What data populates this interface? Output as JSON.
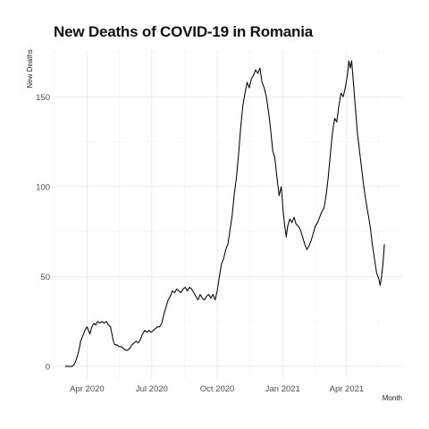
{
  "chart_data": {
    "type": "line",
    "title": "New Deaths of COVID-19 in Romania",
    "xlabel": "Month",
    "ylabel": "New Deaths",
    "grid": true,
    "legend": "none",
    "x_range": [
      "2020-02-14",
      "2021-06-18"
    ],
    "ylim": [
      -7,
      176
    ],
    "y_ticks": [
      0,
      50,
      100,
      150
    ],
    "y_minor_ticks": [
      25,
      75,
      125,
      175
    ],
    "x_ticks": [
      {
        "date": "2020-04-01",
        "label": "Apr 2020"
      },
      {
        "date": "2020-07-01",
        "label": "Jul 2020"
      },
      {
        "date": "2020-10-01",
        "label": "Oct 2020"
      },
      {
        "date": "2021-01-01",
        "label": "Jan 2021"
      },
      {
        "date": "2021-04-01",
        "label": "Apr 2021"
      }
    ],
    "x_minor_ticks": [
      "2020-02-15",
      "2020-05-16",
      "2020-08-16",
      "2020-11-16",
      "2021-02-15",
      "2021-05-16"
    ],
    "series": [
      {
        "color": "#000000",
        "points": [
          [
            "2020-03-01",
            0
          ],
          [
            "2020-03-11",
            0
          ],
          [
            "2020-03-14",
            1
          ],
          [
            "2020-03-17",
            4
          ],
          [
            "2020-03-20",
            8
          ],
          [
            "2020-03-23",
            14
          ],
          [
            "2020-03-26",
            17
          ],
          [
            "2020-03-29",
            20
          ],
          [
            "2020-04-01",
            22
          ],
          [
            "2020-04-03",
            20
          ],
          [
            "2020-04-05",
            18
          ],
          [
            "2020-04-07",
            21
          ],
          [
            "2020-04-09",
            23
          ],
          [
            "2020-04-11",
            24
          ],
          [
            "2020-04-13",
            23
          ],
          [
            "2020-04-16",
            25
          ],
          [
            "2020-04-19",
            24
          ],
          [
            "2020-04-22",
            25
          ],
          [
            "2020-04-25",
            24
          ],
          [
            "2020-04-28",
            25
          ],
          [
            "2020-05-01",
            23
          ],
          [
            "2020-05-04",
            22
          ],
          [
            "2020-05-06",
            18
          ],
          [
            "2020-05-08",
            14
          ],
          [
            "2020-05-10",
            12
          ],
          [
            "2020-05-13",
            12
          ],
          [
            "2020-05-16",
            11
          ],
          [
            "2020-05-19",
            11
          ],
          [
            "2020-05-22",
            10
          ],
          [
            "2020-05-25",
            9
          ],
          [
            "2020-05-28",
            9
          ],
          [
            "2020-05-31",
            10
          ],
          [
            "2020-06-03",
            12
          ],
          [
            "2020-06-06",
            13
          ],
          [
            "2020-06-09",
            14
          ],
          [
            "2020-06-12",
            13
          ],
          [
            "2020-06-15",
            15
          ],
          [
            "2020-06-18",
            18
          ],
          [
            "2020-06-21",
            20
          ],
          [
            "2020-06-24",
            19
          ],
          [
            "2020-06-27",
            20
          ],
          [
            "2020-06-30",
            19
          ],
          [
            "2020-07-03",
            20
          ],
          [
            "2020-07-06",
            21
          ],
          [
            "2020-07-09",
            22
          ],
          [
            "2020-07-12",
            22
          ],
          [
            "2020-07-15",
            24
          ],
          [
            "2020-07-18",
            29
          ],
          [
            "2020-07-21",
            33
          ],
          [
            "2020-07-24",
            37
          ],
          [
            "2020-07-27",
            39
          ],
          [
            "2020-07-30",
            42
          ],
          [
            "2020-08-02",
            41
          ],
          [
            "2020-08-05",
            43
          ],
          [
            "2020-08-08",
            42
          ],
          [
            "2020-08-11",
            41
          ],
          [
            "2020-08-14",
            43
          ],
          [
            "2020-08-17",
            44
          ],
          [
            "2020-08-20",
            42
          ],
          [
            "2020-08-23",
            44
          ],
          [
            "2020-08-26",
            43
          ],
          [
            "2020-08-29",
            41
          ],
          [
            "2020-09-01",
            39
          ],
          [
            "2020-09-04",
            37
          ],
          [
            "2020-09-07",
            40
          ],
          [
            "2020-09-10",
            38
          ],
          [
            "2020-09-13",
            37
          ],
          [
            "2020-09-16",
            39
          ],
          [
            "2020-09-19",
            40
          ],
          [
            "2020-09-22",
            38
          ],
          [
            "2020-09-25",
            40
          ],
          [
            "2020-09-28",
            37
          ],
          [
            "2020-10-01",
            42
          ],
          [
            "2020-10-04",
            50
          ],
          [
            "2020-10-07",
            57
          ],
          [
            "2020-10-10",
            60
          ],
          [
            "2020-10-13",
            65
          ],
          [
            "2020-10-16",
            68
          ],
          [
            "2020-10-19",
            76
          ],
          [
            "2020-10-22",
            84
          ],
          [
            "2020-10-25",
            96
          ],
          [
            "2020-10-28",
            105
          ],
          [
            "2020-10-31",
            118
          ],
          [
            "2020-11-03",
            133
          ],
          [
            "2020-11-06",
            145
          ],
          [
            "2020-11-09",
            152
          ],
          [
            "2020-11-12",
            158
          ],
          [
            "2020-11-15",
            155
          ],
          [
            "2020-11-18",
            160
          ],
          [
            "2020-11-21",
            162
          ],
          [
            "2020-11-24",
            165
          ],
          [
            "2020-11-27",
            163
          ],
          [
            "2020-11-30",
            166
          ],
          [
            "2020-12-03",
            158
          ],
          [
            "2020-12-06",
            155
          ],
          [
            "2020-12-09",
            150
          ],
          [
            "2020-12-12",
            142
          ],
          [
            "2020-12-15",
            132
          ],
          [
            "2020-12-18",
            120
          ],
          [
            "2020-12-21",
            116
          ],
          [
            "2020-12-24",
            105
          ],
          [
            "2020-12-27",
            95
          ],
          [
            "2020-12-30",
            100
          ],
          [
            "2021-01-02",
            85
          ],
          [
            "2021-01-04",
            78
          ],
          [
            "2021-01-06",
            72
          ],
          [
            "2021-01-08",
            78
          ],
          [
            "2021-01-11",
            82
          ],
          [
            "2021-01-14",
            80
          ],
          [
            "2021-01-17",
            83
          ],
          [
            "2021-01-20",
            79
          ],
          [
            "2021-01-23",
            78
          ],
          [
            "2021-01-26",
            76
          ],
          [
            "2021-01-29",
            72
          ],
          [
            "2021-02-01",
            68
          ],
          [
            "2021-02-04",
            65
          ],
          [
            "2021-02-07",
            67
          ],
          [
            "2021-02-10",
            70
          ],
          [
            "2021-02-13",
            74
          ],
          [
            "2021-02-16",
            78
          ],
          [
            "2021-02-19",
            80
          ],
          [
            "2021-02-22",
            83
          ],
          [
            "2021-02-25",
            86
          ],
          [
            "2021-02-28",
            88
          ],
          [
            "2021-03-03",
            95
          ],
          [
            "2021-03-06",
            105
          ],
          [
            "2021-03-09",
            118
          ],
          [
            "2021-03-12",
            130
          ],
          [
            "2021-03-15",
            138
          ],
          [
            "2021-03-18",
            136
          ],
          [
            "2021-03-21",
            145
          ],
          [
            "2021-03-24",
            152
          ],
          [
            "2021-03-27",
            150
          ],
          [
            "2021-03-30",
            155
          ],
          [
            "2021-04-02",
            162
          ],
          [
            "2021-04-04",
            170
          ],
          [
            "2021-04-06",
            166
          ],
          [
            "2021-04-08",
            170
          ],
          [
            "2021-04-10",
            160
          ],
          [
            "2021-04-13",
            145
          ],
          [
            "2021-04-16",
            130
          ],
          [
            "2021-04-19",
            120
          ],
          [
            "2021-04-22",
            110
          ],
          [
            "2021-04-25",
            100
          ],
          [
            "2021-04-28",
            92
          ],
          [
            "2021-05-01",
            85
          ],
          [
            "2021-05-04",
            78
          ],
          [
            "2021-05-07",
            68
          ],
          [
            "2021-05-10",
            60
          ],
          [
            "2021-05-13",
            52
          ],
          [
            "2021-05-16",
            49
          ],
          [
            "2021-05-18",
            45
          ],
          [
            "2021-05-20",
            50
          ],
          [
            "2021-05-22",
            57
          ],
          [
            "2021-05-24",
            68
          ]
        ]
      }
    ]
  }
}
